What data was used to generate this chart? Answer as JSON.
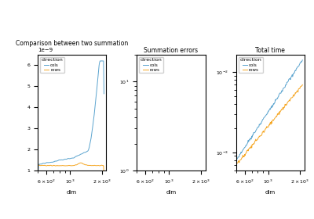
{
  "title1": "Comparison between two summation",
  "title2": "Summation errors",
  "title3": "Total time",
  "xlabel": "dim",
  "legend_title": "direction",
  "legend_cols": "cols",
  "legend_rows": "rows",
  "color_cols": "#5BA4CF",
  "color_rows": "#F5A623",
  "xlim": [
    500,
    2200
  ],
  "plot1_ylim": [
    1e-09,
    6.5e-09
  ],
  "plot2_ylim_log": [
    1.0,
    20.0
  ],
  "plot3_ylim_log": [
    0.0005,
    0.01
  ],
  "n_points": 150
}
